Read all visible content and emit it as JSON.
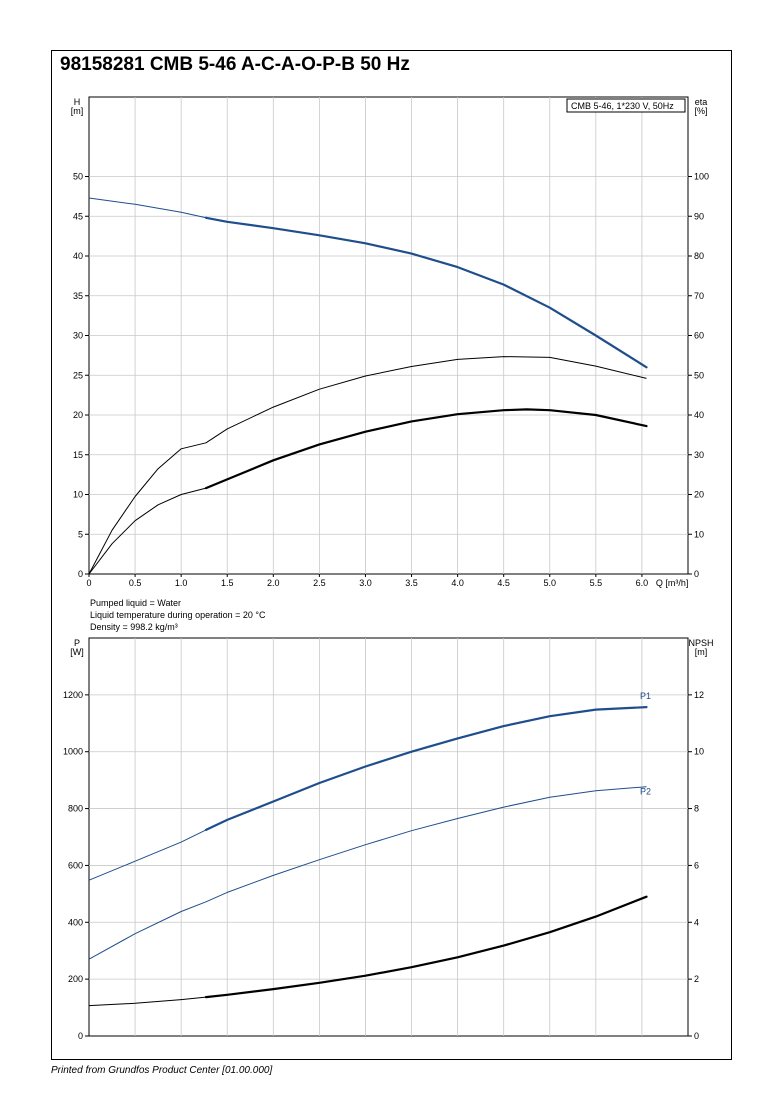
{
  "title": "98158281 CMB 5-46 A-C-A-O-P-B 50 Hz",
  "footer": "Printed from Grundfos Product Center [01.00.000]",
  "colors": {
    "blue": "#1f4e8c",
    "black": "#000000",
    "grid": "#c8c8c8"
  },
  "notes": [
    "Pumped liquid = Water",
    "Liquid temperature during operation = 20 °C",
    "Density = 998.2 kg/m³"
  ],
  "chart_data": [
    {
      "type": "line",
      "title": "",
      "xlabel": "Q [m³/h]",
      "ylabel": "H\n[m]",
      "y2label": "eta\n[%]",
      "legend": "CMB 5-46, 1*230 V, 50Hz",
      "legend_position": "top-right",
      "grid": true,
      "xlim": [
        0,
        6.5
      ],
      "ylim": [
        0,
        60
      ],
      "y2lim": [
        0,
        120
      ],
      "x_ticks": [
        0,
        0.5,
        1.0,
        1.5,
        2.0,
        2.5,
        3.0,
        3.5,
        4.0,
        4.5,
        5.0,
        5.5,
        6.0
      ],
      "x_tick_labels": [
        "0",
        "0.5",
        "1.0",
        "1.5",
        "2.0",
        "2.5",
        "3.0",
        "3.5",
        "4.0",
        "4.5",
        "5.0",
        "5.5",
        "6.0"
      ],
      "y_ticks": [
        0,
        5,
        10,
        15,
        20,
        25,
        30,
        35,
        40,
        45,
        50
      ],
      "y2_ticks": [
        0,
        10,
        20,
        30,
        40,
        50,
        60,
        70,
        80,
        90,
        100
      ],
      "series": [
        {
          "axis": "y",
          "color": "#1f4e8c",
          "x": [
            0,
            0.5,
            1.0,
            1.27,
            1.5,
            2.0,
            2.5,
            3.0,
            3.5,
            4.0,
            4.5,
            5.0,
            5.5,
            6.05
          ],
          "y": [
            47.3,
            46.5,
            45.5,
            44.8,
            44.3,
            43.5,
            42.6,
            41.6,
            40.3,
            38.6,
            36.4,
            33.5,
            30.0,
            26.0
          ],
          "bold_from": 1.27
        },
        {
          "axis": "y2",
          "color": "#000000",
          "x": [
            0,
            0.25,
            0.5,
            0.75,
            1.0,
            1.27,
            1.5,
            2.0,
            2.5,
            3.0,
            3.5,
            4.0,
            4.5,
            5.0,
            5.5,
            6.05
          ],
          "y": [
            0,
            11,
            19.5,
            26.5,
            31.5,
            33,
            36.5,
            42,
            46.5,
            49.8,
            52.2,
            54,
            54.7,
            54.5,
            52.3,
            49.2
          ],
          "bold_from": 99
        },
        {
          "axis": "y",
          "color": "#000000",
          "x": [
            0,
            0.25,
            0.5,
            0.75,
            1.0,
            1.27,
            1.5,
            2.0,
            2.5,
            3.0,
            3.5,
            4.0,
            4.5,
            4.75,
            5.0,
            5.5,
            6.05
          ],
          "y": [
            0,
            3.8,
            6.7,
            8.7,
            10.0,
            10.8,
            11.9,
            14.3,
            16.3,
            17.9,
            19.2,
            20.1,
            20.6,
            20.7,
            20.6,
            20.0,
            18.6
          ],
          "bold_from": 1.27
        }
      ]
    },
    {
      "type": "line",
      "title": "",
      "xlabel": "",
      "ylabel": "P\n[W]",
      "y2label": "NPSH\n[m]",
      "grid": true,
      "xlim": [
        0,
        6.5
      ],
      "ylim": [
        0,
        1400
      ],
      "y2lim": [
        0,
        14
      ],
      "y_ticks": [
        0,
        200,
        400,
        600,
        800,
        1000,
        1200
      ],
      "y2_ticks": [
        0,
        2,
        4,
        6,
        8,
        10,
        12
      ],
      "series": [
        {
          "name": "P1",
          "axis": "y",
          "color": "#1f4e8c",
          "x": [
            0,
            0.5,
            1.0,
            1.27,
            1.5,
            2.0,
            2.5,
            3.0,
            3.5,
            4.0,
            4.5,
            5.0,
            5.5,
            6.05
          ],
          "y": [
            548,
            615,
            682,
            725,
            760,
            825,
            890,
            948,
            1000,
            1047,
            1090,
            1125,
            1148,
            1157
          ],
          "bold_from": 1.27
        },
        {
          "name": "P2",
          "axis": "y",
          "color": "#1f4e8c",
          "x": [
            0,
            0.5,
            1.0,
            1.27,
            1.5,
            2.0,
            2.5,
            3.0,
            3.5,
            4.0,
            4.5,
            5.0,
            5.5,
            6.05
          ],
          "y": [
            270,
            360,
            438,
            472,
            505,
            565,
            620,
            673,
            722,
            765,
            805,
            840,
            863,
            877
          ],
          "bold_from": 99
        },
        {
          "axis": "y",
          "color": "#000000",
          "x": [
            0,
            0.5,
            1.0,
            1.27,
            1.5,
            2.0,
            2.5,
            3.0,
            3.5,
            4.0,
            4.5,
            5.0,
            5.5,
            6.05
          ],
          "y": [
            107,
            115,
            128,
            137,
            145,
            165,
            187,
            212,
            242,
            277,
            318,
            365,
            420,
            490
          ],
          "bold_from": 1.27
        }
      ]
    }
  ]
}
